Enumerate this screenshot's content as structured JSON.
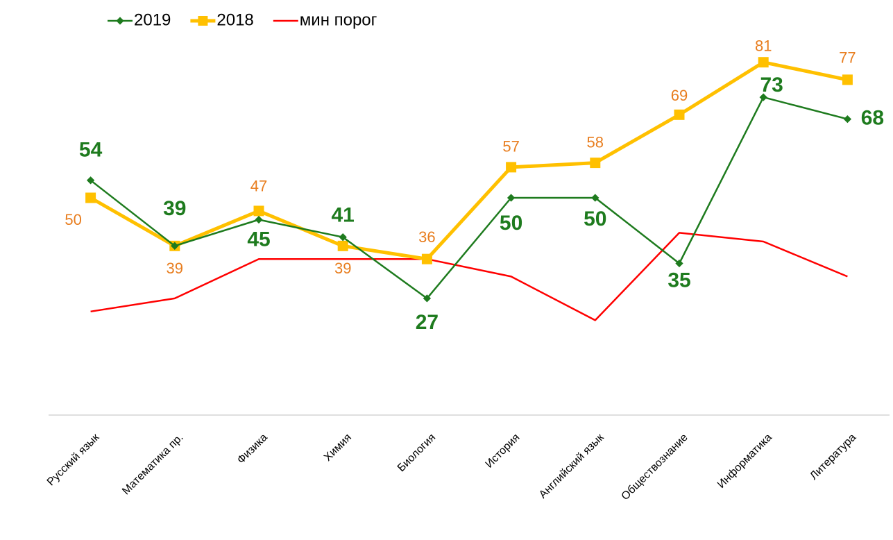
{
  "chart_data": {
    "type": "line",
    "categories": [
      "Русский язык",
      "Математика  пр.",
      "Физика",
      "Химия",
      "Биология",
      "История",
      "Английский язык",
      "Обществознание",
      "Информатика",
      "Литература"
    ],
    "series": [
      {
        "name": "2019",
        "color": "#1e7b1e",
        "values": [
          54,
          39,
          45,
          41,
          27,
          50,
          50,
          35,
          73,
          68
        ]
      },
      {
        "name": "2018",
        "color": "#ffc000",
        "values": [
          50,
          39,
          47,
          39,
          36,
          57,
          58,
          69,
          81,
          77
        ]
      },
      {
        "name": "мин порог",
        "color": "#ff0000",
        "values": [
          24,
          27,
          36,
          36,
          36,
          32,
          22,
          42,
          40,
          32
        ]
      }
    ],
    "ylim": [
      0,
      95
    ]
  }
}
